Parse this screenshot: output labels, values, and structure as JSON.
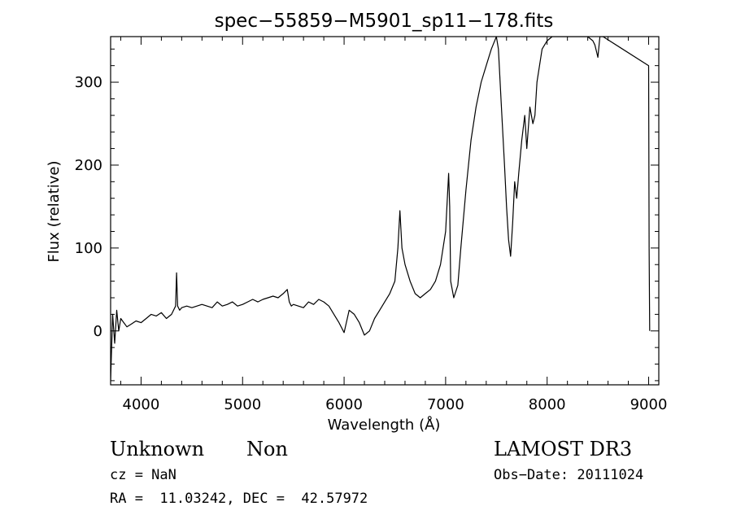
{
  "chart_data": {
    "type": "line",
    "title": "spec−55859−M5901_sp11−178.fits",
    "xlabel": "Wavelength (Å)",
    "ylabel": "Flux (relative)",
    "xlim": [
      3700,
      9100
    ],
    "ylim": [
      -65,
      355
    ],
    "x_ticks": [
      4000,
      5000,
      6000,
      7000,
      8000,
      9000
    ],
    "y_ticks": [
      0,
      100,
      200,
      300
    ],
    "grid": false,
    "legend": "none",
    "line_color": "#000000",
    "series": [
      {
        "x": [
          3700,
          3720,
          3740,
          3760,
          3780,
          3800,
          3830,
          3860,
          3900,
          3950,
          4000,
          4050,
          4100,
          4150,
          4200,
          4250,
          4300,
          4340,
          4350,
          4360,
          4380,
          4400,
          4450,
          4500,
          4550,
          4600,
          4650,
          4700,
          4750,
          4800,
          4850,
          4900,
          4950,
          5000,
          5050,
          5100,
          5150,
          5200,
          5250,
          5300,
          5350,
          5400,
          5440,
          5460,
          5480,
          5500,
          5550,
          5600,
          5650,
          5700,
          5750,
          5800,
          5850,
          5900,
          5950,
          6000,
          6050,
          6100,
          6150,
          6200,
          6250,
          6300,
          6350,
          6400,
          6450,
          6500,
          6530,
          6550,
          6570,
          6600,
          6650,
          6700,
          6750,
          6800,
          6850,
          6900,
          6950,
          7000,
          7030,
          7040,
          7050,
          7080,
          7120,
          7150,
          7200,
          7250,
          7300,
          7350,
          7400,
          7450,
          7500,
          7520,
          7550,
          7580,
          7600,
          7620,
          7640,
          7660,
          7680,
          7700,
          7720,
          7750,
          7780,
          7800,
          7830,
          7860,
          7880,
          7900,
          7950,
          8000,
          8050,
          8400,
          8450,
          8470,
          8490,
          8500,
          8520,
          8550,
          9000,
          9005,
          9010
        ],
        "y": [
          -60,
          20,
          -15,
          25,
          0,
          15,
          10,
          5,
          8,
          12,
          10,
          15,
          20,
          18,
          22,
          15,
          20,
          30,
          70,
          30,
          25,
          28,
          30,
          28,
          30,
          32,
          30,
          28,
          35,
          30,
          32,
          35,
          30,
          32,
          35,
          38,
          35,
          38,
          40,
          42,
          40,
          45,
          50,
          35,
          30,
          32,
          30,
          28,
          35,
          32,
          38,
          35,
          30,
          20,
          10,
          -2,
          25,
          20,
          10,
          -5,
          0,
          15,
          25,
          35,
          45,
          60,
          100,
          145,
          100,
          80,
          60,
          45,
          40,
          45,
          50,
          60,
          80,
          120,
          190,
          150,
          60,
          40,
          55,
          100,
          170,
          230,
          270,
          300,
          320,
          340,
          355,
          340,
          270,
          200,
          150,
          110,
          90,
          130,
          180,
          160,
          190,
          230,
          260,
          220,
          270,
          250,
          260,
          300,
          340,
          350,
          355,
          355,
          350,
          345,
          335,
          330,
          355,
          355,
          320,
          100,
          0
        ]
      }
    ]
  },
  "info": {
    "object_name": "Unknown",
    "object_class": "Non",
    "survey": "LAMOST DR3",
    "cz": "cz = NaN",
    "obs_date": "Obs−Date: 20111024",
    "coords": "RA =  11.03242, DEC =  42.57972"
  }
}
